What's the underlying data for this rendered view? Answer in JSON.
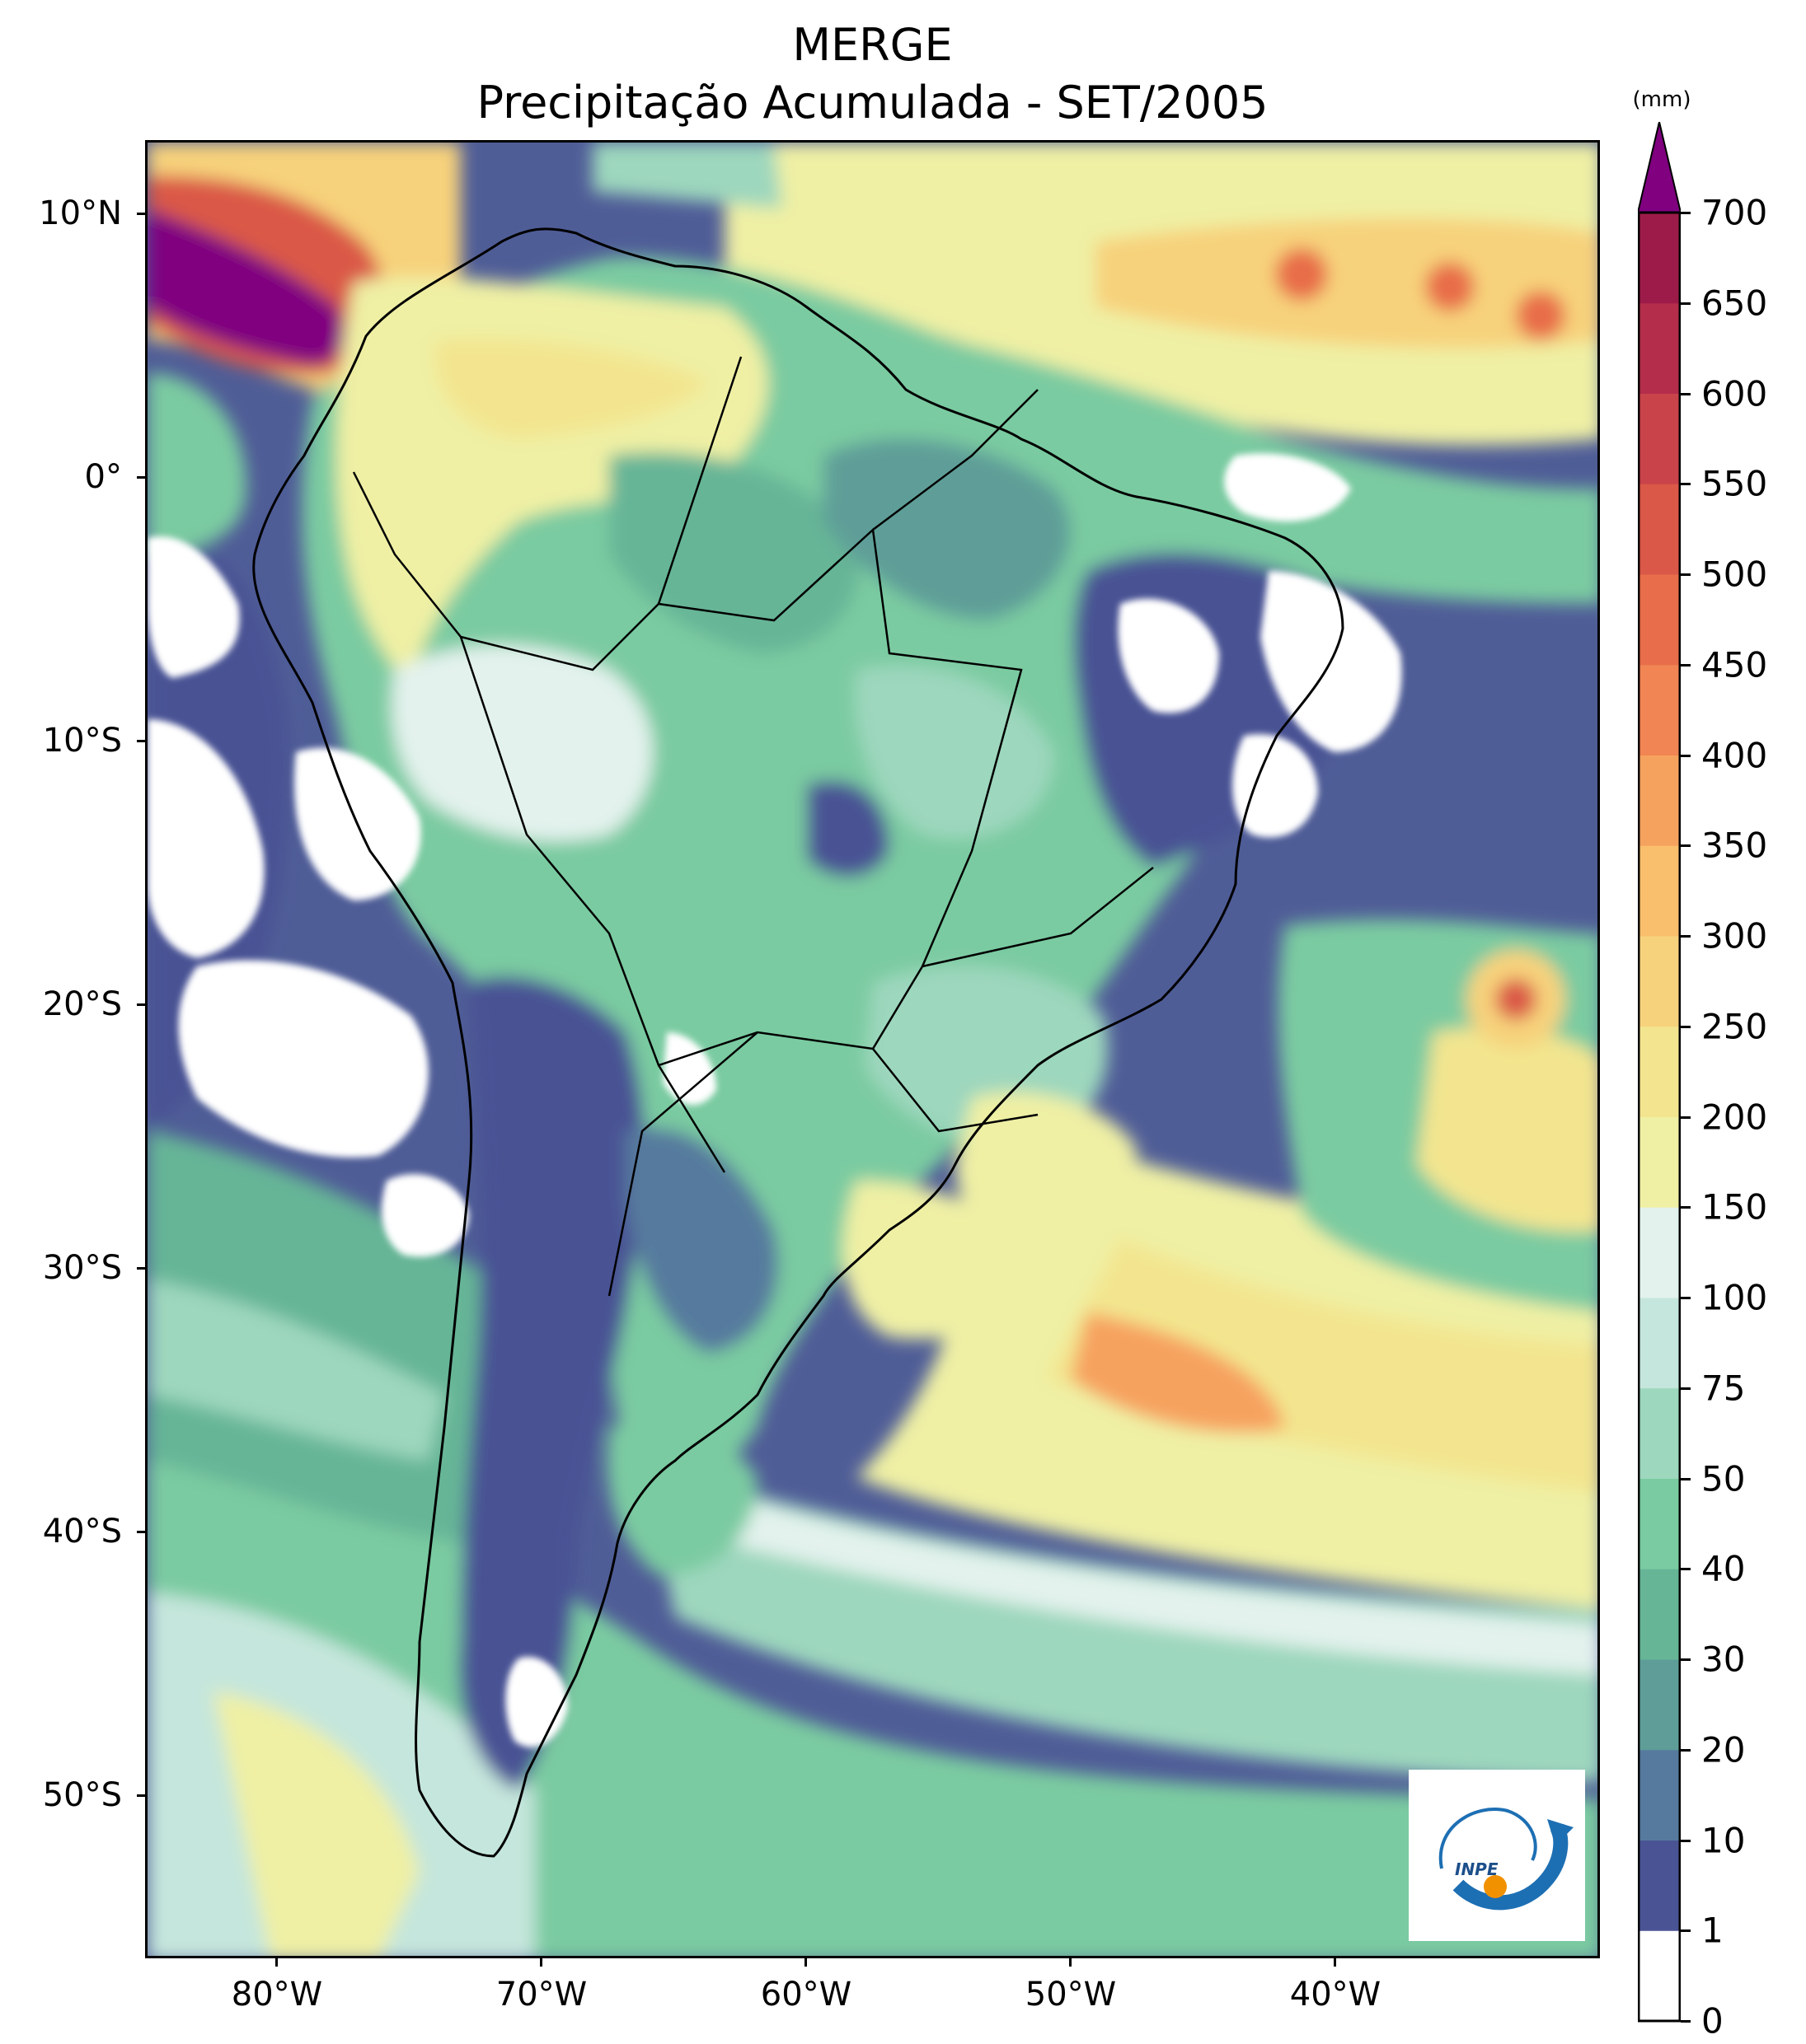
{
  "title": "MERGE",
  "subtitle": "Precipitação Acumulada - SET/2005",
  "lat_labels": [
    "10°N",
    "0°",
    "10°S",
    "20°S",
    "30°S",
    "40°S",
    "50°S"
  ],
  "lon_labels": [
    "80°W",
    "70°W",
    "60°W",
    "50°W",
    "40°W"
  ],
  "colorbar": {
    "unit": "(mm)",
    "levels": [
      "0",
      "1",
      "10",
      "20",
      "30",
      "40",
      "50",
      "75",
      "100",
      "150",
      "200",
      "250",
      "300",
      "350",
      "400",
      "450",
      "500",
      "550",
      "600",
      "650",
      "700"
    ],
    "colors": [
      "#ffffff",
      "#4a5394",
      "#567a9e",
      "#5f9e98",
      "#66b597",
      "#7acba1",
      "#9dd7bd",
      "#c5e6dc",
      "#e3f2ed",
      "#eff0a4",
      "#f3e58f",
      "#f7d27c",
      "#f9bf6c",
      "#f6a25f",
      "#f18553",
      "#e86d4a",
      "#da5847",
      "#c9434a",
      "#b42d4b",
      "#9d1b49",
      "#6f0f75"
    ],
    "extend_color": "#800080"
  },
  "map": {
    "extent": {
      "lon_min": -85,
      "lon_max": -30,
      "lat_min": -56,
      "lat_max": 13
    },
    "land_shown": "South America",
    "logo_text": "INPE",
    "colors": {
      "dry": "#ffffff",
      "low": "#4a5394",
      "mid": "#9dd7bd",
      "high": "#eff0a4",
      "heavy": "#e86d4a",
      "extreme": "#800080"
    }
  }
}
